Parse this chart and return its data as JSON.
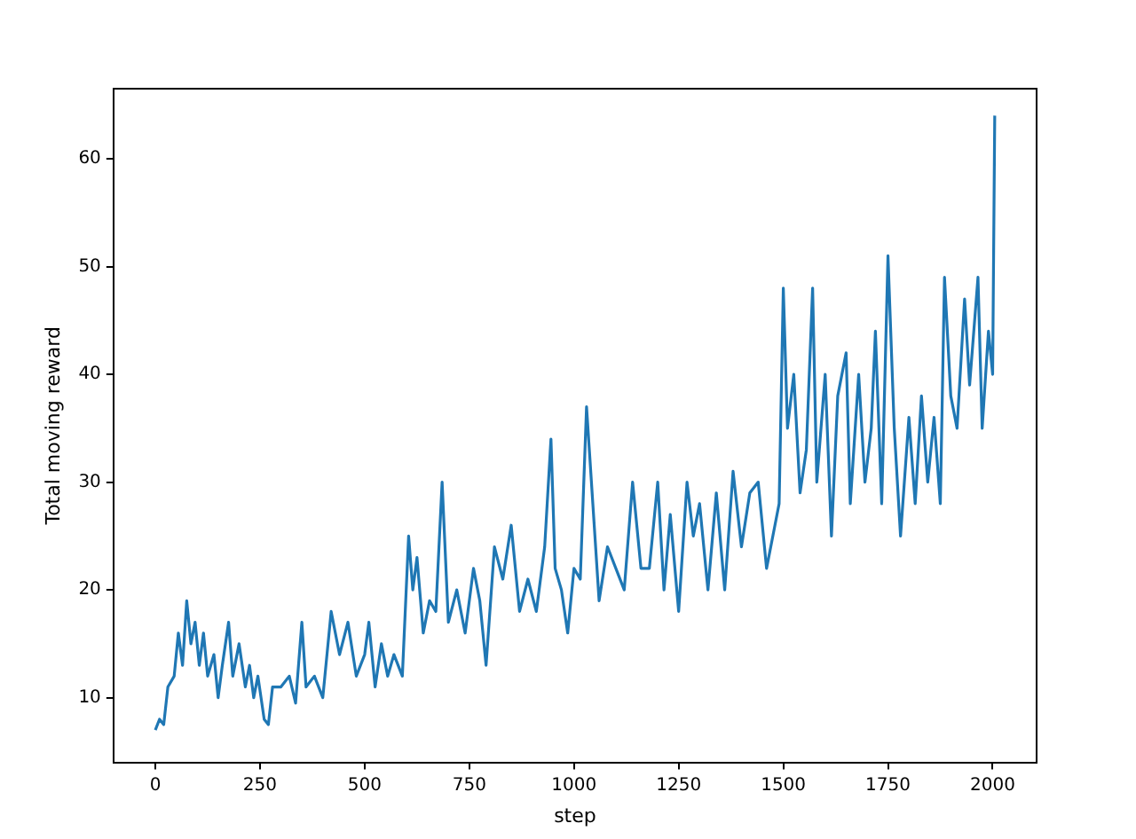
{
  "chart_data": {
    "type": "line",
    "xlabel": "step",
    "ylabel": "Total moving reward",
    "x": [
      0,
      10,
      20,
      30,
      45,
      55,
      65,
      75,
      85,
      95,
      105,
      115,
      125,
      140,
      150,
      160,
      175,
      185,
      200,
      215,
      225,
      235,
      245,
      260,
      270,
      280,
      300,
      320,
      335,
      350,
      360,
      380,
      400,
      420,
      440,
      460,
      480,
      500,
      510,
      525,
      540,
      555,
      570,
      590,
      605,
      615,
      625,
      640,
      655,
      670,
      685,
      700,
      720,
      740,
      760,
      775,
      790,
      810,
      830,
      850,
      870,
      890,
      910,
      930,
      945,
      955,
      970,
      985,
      1000,
      1015,
      1030,
      1045,
      1060,
      1080,
      1100,
      1120,
      1140,
      1160,
      1180,
      1200,
      1215,
      1230,
      1250,
      1270,
      1285,
      1300,
      1320,
      1340,
      1360,
      1380,
      1400,
      1420,
      1440,
      1460,
      1480,
      1490,
      1500,
      1510,
      1525,
      1540,
      1555,
      1570,
      1580,
      1600,
      1615,
      1630,
      1650,
      1660,
      1680,
      1695,
      1710,
      1720,
      1735,
      1750,
      1765,
      1780,
      1800,
      1815,
      1830,
      1845,
      1860,
      1875,
      1885,
      1900,
      1915,
      1933,
      1945,
      1965,
      1975,
      1990,
      2000,
      2005
    ],
    "series": [
      {
        "color": "#1f77b4",
        "values": [
          7,
          8,
          7.5,
          11,
          12,
          16,
          13,
          19,
          15,
          17,
          13,
          16,
          12,
          14,
          10,
          13,
          17,
          12,
          15,
          11,
          13,
          10,
          12,
          8,
          7.5,
          11,
          11,
          12,
          9.5,
          17,
          11,
          12,
          10,
          18,
          14,
          17,
          12,
          14,
          17,
          11,
          15,
          12,
          14,
          12,
          25,
          20,
          23,
          16,
          19,
          18,
          30,
          17,
          20,
          16,
          22,
          19,
          13,
          24,
          21,
          26,
          18,
          21,
          18,
          24,
          34,
          22,
          20,
          16,
          22,
          21,
          37,
          28,
          19,
          24,
          22,
          20,
          30,
          22,
          22,
          30,
          20,
          27,
          18,
          30,
          25,
          28,
          20,
          29,
          20,
          31,
          24,
          29,
          30,
          22,
          26,
          28,
          48,
          35,
          40,
          29,
          33,
          48,
          30,
          40,
          25,
          38,
          42,
          28,
          40,
          30,
          35,
          44,
          28,
          51,
          35,
          25,
          36,
          28,
          38,
          30,
          36,
          28,
          49,
          38,
          35,
          47,
          39,
          49,
          35,
          44,
          40,
          64
        ]
      }
    ],
    "xlim": [
      -100,
      2105
    ],
    "xticks": [
      0,
      250,
      500,
      750,
      1000,
      1250,
      1500,
      1750,
      2000
    ],
    "ylim": [
      4,
      66.5
    ],
    "yticks": [
      10,
      20,
      30,
      40,
      50,
      60
    ],
    "grid": false,
    "legend": false,
    "marker": "none",
    "line_style": "solid"
  }
}
